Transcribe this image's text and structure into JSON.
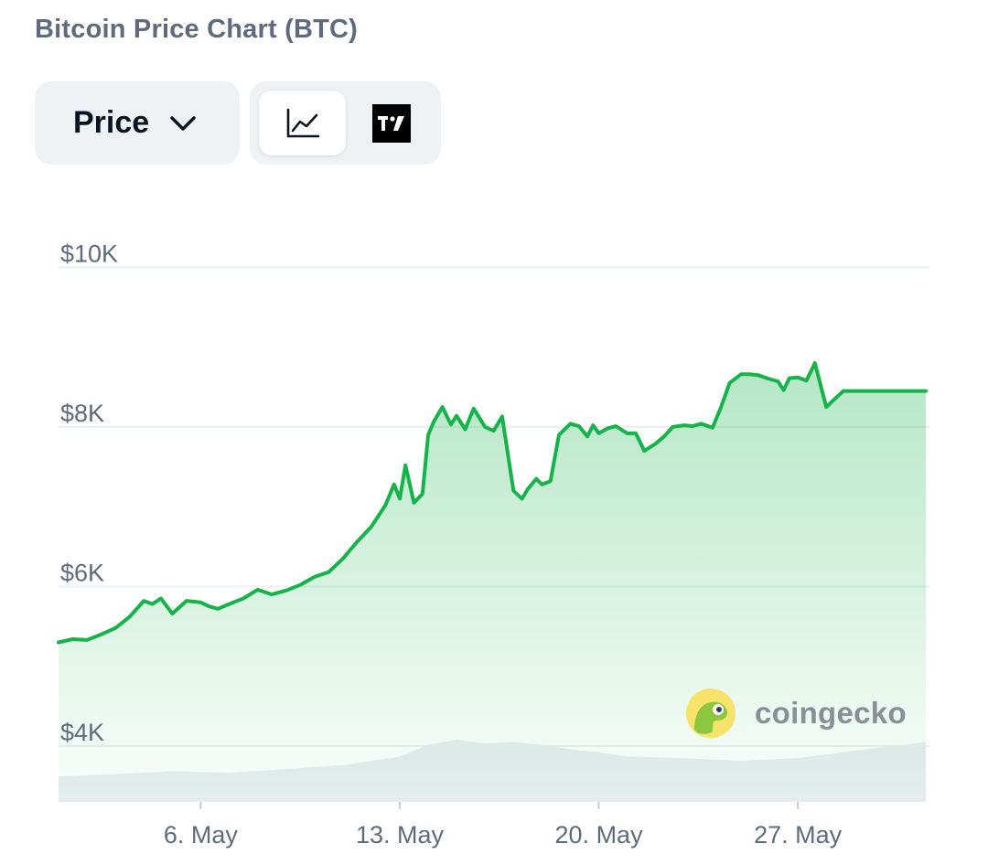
{
  "header": {
    "title": "Bitcoin Price Chart (BTC)"
  },
  "controls": {
    "metric_dropdown": {
      "selected": "Price"
    },
    "view_toggle": {
      "active": "line-chart",
      "options": [
        "line-chart",
        "tradingview"
      ]
    }
  },
  "colors": {
    "line": "#16b24a",
    "fill": "#16b24a",
    "volume": "#e9edf1",
    "grid": "#eceff2",
    "text": "#5f6b7c"
  },
  "watermark": {
    "text": "coingecko"
  },
  "chart_data": {
    "type": "area",
    "title": "Bitcoin Price Chart (BTC)",
    "ylabel": "",
    "xlabel": "",
    "ylim": [
      3300,
      10600
    ],
    "y_ticks": [
      4000,
      6000,
      8000,
      10000
    ],
    "y_tick_labels": [
      "$4K",
      "$6K",
      "$8K",
      "$10K"
    ],
    "x_range": [
      0,
      30.5
    ],
    "x_ticks": [
      5,
      12,
      19,
      26
    ],
    "x_tick_labels": [
      "6. May",
      "13. May",
      "20. May",
      "27. May"
    ],
    "grid": true,
    "series": [
      {
        "name": "",
        "x": [
          0,
          0.5,
          1,
          1.5,
          2,
          2.5,
          3,
          3.3,
          3.6,
          4,
          4.5,
          5,
          5.3,
          5.6,
          6,
          6.5,
          7,
          7.5,
          8,
          8.5,
          9,
          9.5,
          10,
          10.5,
          11,
          11.5,
          11.8,
          12,
          12.2,
          12.5,
          12.8,
          13,
          13.2,
          13.5,
          13.8,
          14,
          14.3,
          14.6,
          15,
          15.3,
          15.6,
          16,
          16.3,
          16.5,
          16.8,
          17,
          17.3,
          17.6,
          18,
          18.3,
          18.6,
          18.8,
          19,
          19.3,
          19.6,
          20,
          20.3,
          20.6,
          21,
          21.3,
          21.6,
          22,
          22.3,
          22.6,
          23,
          23.3,
          23.6,
          24,
          24.3,
          24.6,
          25,
          25.3,
          25.5,
          25.7,
          26,
          26.3,
          26.6,
          27,
          27.3,
          27.6,
          28,
          28.3,
          28.6,
          29,
          29.3,
          29.6,
          30,
          30.3,
          30.5
        ],
        "values": [
          5300,
          5340,
          5330,
          5400,
          5480,
          5620,
          5820,
          5780,
          5850,
          5660,
          5820,
          5800,
          5750,
          5720,
          5780,
          5850,
          5960,
          5900,
          5950,
          6020,
          6120,
          6180,
          6350,
          6560,
          6750,
          7020,
          7280,
          7100,
          7520,
          7050,
          7160,
          7900,
          8070,
          8250,
          8030,
          8140,
          7970,
          8230,
          8000,
          7950,
          8130,
          7200,
          7100,
          7220,
          7350,
          7280,
          7320,
          7900,
          8040,
          8010,
          7880,
          8020,
          7920,
          7980,
          8010,
          7920,
          7920,
          7700,
          7790,
          7880,
          8000,
          8020,
          8010,
          8040,
          7990,
          8250,
          8550,
          8660,
          8660,
          8650,
          8600,
          8570,
          8460,
          8610,
          8620,
          8580,
          8800,
          8250,
          8350,
          8450,
          8450,
          8450,
          8450,
          8450,
          8450,
          8450,
          8450,
          8450,
          8450
        ]
      }
    ],
    "volume": {
      "x": [
        0,
        2,
        4,
        6,
        8,
        10,
        12,
        13,
        14,
        15,
        16,
        17,
        18,
        19,
        20,
        22,
        24,
        26,
        28,
        30.5
      ],
      "values": [
        0.35,
        0.38,
        0.42,
        0.4,
        0.45,
        0.5,
        0.62,
        0.78,
        0.85,
        0.8,
        0.82,
        0.78,
        0.72,
        0.68,
        0.62,
        0.6,
        0.56,
        0.6,
        0.7,
        0.82
      ]
    }
  }
}
